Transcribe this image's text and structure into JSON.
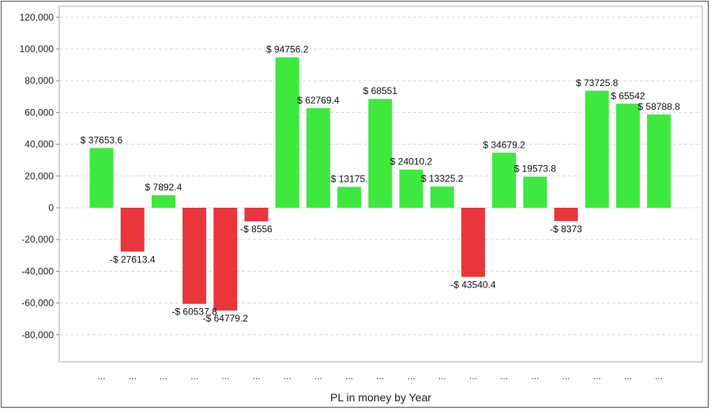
{
  "chart_data": {
    "type": "bar",
    "title": "",
    "xlabel": "PL in money by Year",
    "ylabel": "",
    "ylim": [
      -100000,
      120000
    ],
    "yticks": [
      120000,
      100000,
      80000,
      60000,
      40000,
      20000,
      0,
      -20000,
      -40000,
      -60000,
      -80000
    ],
    "ytick_labels": [
      "120,000",
      "100,000",
      "80,000",
      "60,000",
      "40,000",
      "20,000",
      "0",
      "-20,000",
      "-40,000",
      "-60,000",
      "-80,000"
    ],
    "grid": true,
    "categories": [
      "...",
      "...",
      "...",
      "...",
      "...",
      "...",
      "...",
      "...",
      "...",
      "...",
      "...",
      "...",
      "...",
      "...",
      "...",
      "...",
      "...",
      "...",
      "..."
    ],
    "values": [
      37653.6,
      -27613.4,
      7892.4,
      -60537.8,
      -64779.2,
      -8556,
      94756.2,
      62769.4,
      13175,
      68551,
      24010.2,
      13325.2,
      -43540.4,
      34679.2,
      19573.8,
      -8373,
      73725.8,
      65542,
      58788.8
    ],
    "labels": [
      "$ 37653.6",
      "-$ 27613.4",
      "$ 7892.4",
      "-$ 60537.8",
      "-$ 64779.2",
      "-$ 8556",
      "$ 94756.2",
      "$ 62769.4",
      "$ 13175.",
      "$ 68551",
      "$ 24010.2",
      "$ 13325.2",
      "-$ 43540.4",
      "$ 34679.2",
      "$ 19573.8",
      "-$ 8373",
      "$ 73725.8",
      "$ 65542",
      "$ 58788.8"
    ],
    "colors": {
      "positive": "#3ee83e",
      "negative": "#e8363c"
    }
  }
}
